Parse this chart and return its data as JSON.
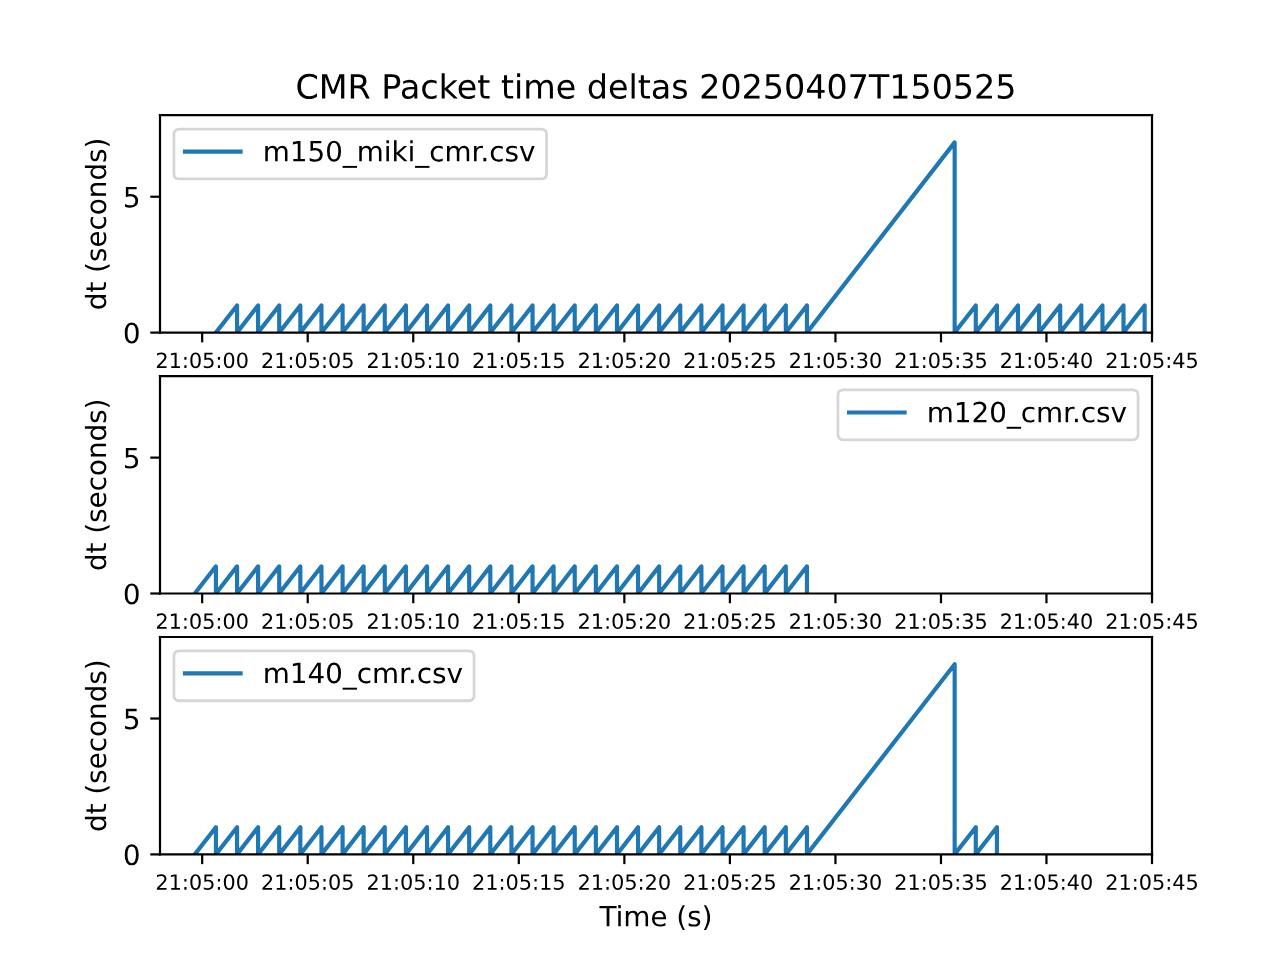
{
  "chart_data": [
    {
      "type": "line",
      "title": "CMR Packet time deltas 20250407T150525",
      "ylabel": "dt (seconds)",
      "legend": "top left",
      "xlim": [
        21.082778,
        21.095833
      ],
      "xticks": [
        {
          "value": 21.083333,
          "label": "21:05:00"
        },
        {
          "value": 21.084722,
          "label": "21:05:05"
        },
        {
          "value": 21.086111,
          "label": "21:05:10"
        },
        {
          "value": 21.0875,
          "label": "21:05:15"
        },
        {
          "value": 21.088889,
          "label": "21:05:20"
        },
        {
          "value": 21.090278,
          "label": "21:05:25"
        },
        {
          "value": 21.091667,
          "label": "21:05:30"
        },
        {
          "value": 21.093056,
          "label": "21:05:35"
        },
        {
          "value": 21.094444,
          "label": "21:05:40"
        },
        {
          "value": 21.095833,
          "label": "21:05:45"
        }
      ],
      "ylim": [
        0,
        8
      ],
      "yticks": [
        0,
        5
      ],
      "series": [
        {
          "name": "m150_miki_cmr.csv",
          "color": "#1f77b4",
          "x": [
            21.083514,
            21.083792,
            21.083792,
            21.084069,
            21.084069,
            21.084347,
            21.084347,
            21.084625,
            21.084625,
            21.084903,
            21.084903,
            21.085181,
            21.085181,
            21.085458,
            21.085458,
            21.085736,
            21.085736,
            21.086014,
            21.086014,
            21.086292,
            21.086292,
            21.086569,
            21.086569,
            21.086847,
            21.086847,
            21.087125,
            21.087125,
            21.087403,
            21.087403,
            21.087681,
            21.087681,
            21.087958,
            21.087958,
            21.088236,
            21.088236,
            21.088514,
            21.088514,
            21.088792,
            21.088792,
            21.089069,
            21.089069,
            21.089347,
            21.089347,
            21.089625,
            21.089625,
            21.089903,
            21.089903,
            21.090181,
            21.090181,
            21.090458,
            21.090458,
            21.090736,
            21.090736,
            21.091014,
            21.091014,
            21.091292,
            21.091292,
            21.093236,
            21.093236,
            21.093514,
            21.093514,
            21.093792,
            21.093792,
            21.094069,
            21.094069,
            21.094347,
            21.094347,
            21.094625,
            21.094625,
            21.094903,
            21.094903,
            21.095181,
            21.095181,
            21.095458,
            21.095458,
            21.095736,
            21.095736
          ],
          "values": [
            0,
            1,
            0,
            1,
            0,
            1,
            0,
            1,
            0,
            1,
            0,
            1,
            0,
            1,
            0,
            1,
            0,
            1,
            0,
            1,
            0,
            1,
            0,
            1,
            0,
            1,
            0,
            1,
            0,
            1,
            0,
            1,
            0,
            1,
            0,
            1,
            0,
            1,
            0,
            1,
            0,
            1,
            0,
            1,
            0,
            1,
            0,
            1,
            0,
            1,
            0,
            1,
            0,
            1,
            0,
            1,
            0,
            7,
            0,
            1,
            0,
            1,
            0,
            1,
            0,
            1,
            0,
            1,
            0,
            1,
            0,
            1,
            0,
            1,
            0,
            1,
            0
          ]
        }
      ]
    },
    {
      "type": "line",
      "ylabel": "dt (seconds)",
      "legend": "top right",
      "xlim": [
        21.082778,
        21.095833
      ],
      "xticks": [
        {
          "value": 21.083333,
          "label": "21:05:00"
        },
        {
          "value": 21.084722,
          "label": "21:05:05"
        },
        {
          "value": 21.086111,
          "label": "21:05:10"
        },
        {
          "value": 21.0875,
          "label": "21:05:15"
        },
        {
          "value": 21.088889,
          "label": "21:05:20"
        },
        {
          "value": 21.090278,
          "label": "21:05:25"
        },
        {
          "value": 21.091667,
          "label": "21:05:30"
        },
        {
          "value": 21.093056,
          "label": "21:05:35"
        },
        {
          "value": 21.094444,
          "label": "21:05:40"
        },
        {
          "value": 21.095833,
          "label": "21:05:45"
        }
      ],
      "ylim": [
        0,
        8
      ],
      "yticks": [
        0,
        5
      ],
      "series": [
        {
          "name": "m120_cmr.csv",
          "color": "#1f77b4",
          "x": [
            21.083236,
            21.083514,
            21.083514,
            21.083792,
            21.083792,
            21.084069,
            21.084069,
            21.084347,
            21.084347,
            21.084625,
            21.084625,
            21.084903,
            21.084903,
            21.085181,
            21.085181,
            21.085458,
            21.085458,
            21.085736,
            21.085736,
            21.086014,
            21.086014,
            21.086292,
            21.086292,
            21.086569,
            21.086569,
            21.086847,
            21.086847,
            21.087125,
            21.087125,
            21.087403,
            21.087403,
            21.087681,
            21.087681,
            21.087958,
            21.087958,
            21.088236,
            21.088236,
            21.088514,
            21.088514,
            21.088792,
            21.088792,
            21.089069,
            21.089069,
            21.089347,
            21.089347,
            21.089625,
            21.089625,
            21.089903,
            21.089903,
            21.090181,
            21.090181,
            21.090458,
            21.090458,
            21.090736,
            21.090736,
            21.091014,
            21.091014,
            21.091292,
            21.091292
          ],
          "values": [
            0,
            1,
            0,
            1,
            0,
            1,
            0,
            1,
            0,
            1,
            0,
            1,
            0,
            1,
            0,
            1,
            0,
            1,
            0,
            1,
            0,
            1,
            0,
            1,
            0,
            1,
            0,
            1,
            0,
            1,
            0,
            1,
            0,
            1,
            0,
            1,
            0,
            1,
            0,
            1,
            0,
            1,
            0,
            1,
            0,
            1,
            0,
            1,
            0,
            1,
            0,
            1,
            0,
            1,
            0,
            1,
            0,
            1,
            0
          ]
        }
      ]
    },
    {
      "type": "line",
      "xlabel": "Time (s)",
      "ylabel": "dt (seconds)",
      "legend": "top left",
      "xlim": [
        21.082778,
        21.095833
      ],
      "xticks": [
        {
          "value": 21.083333,
          "label": "21:05:00"
        },
        {
          "value": 21.084722,
          "label": "21:05:05"
        },
        {
          "value": 21.086111,
          "label": "21:05:10"
        },
        {
          "value": 21.0875,
          "label": "21:05:15"
        },
        {
          "value": 21.088889,
          "label": "21:05:20"
        },
        {
          "value": 21.090278,
          "label": "21:05:25"
        },
        {
          "value": 21.091667,
          "label": "21:05:30"
        },
        {
          "value": 21.093056,
          "label": "21:05:35"
        },
        {
          "value": 21.094444,
          "label": "21:05:40"
        },
        {
          "value": 21.095833,
          "label": "21:05:45"
        }
      ],
      "ylim": [
        0,
        8
      ],
      "yticks": [
        0,
        5
      ],
      "series": [
        {
          "name": "m140_cmr.csv",
          "color": "#1f77b4",
          "x": [
            21.083236,
            21.083514,
            21.083514,
            21.083792,
            21.083792,
            21.084069,
            21.084069,
            21.084347,
            21.084347,
            21.084625,
            21.084625,
            21.084903,
            21.084903,
            21.085181,
            21.085181,
            21.085458,
            21.085458,
            21.085736,
            21.085736,
            21.086014,
            21.086014,
            21.086292,
            21.086292,
            21.086569,
            21.086569,
            21.086847,
            21.086847,
            21.087125,
            21.087125,
            21.087403,
            21.087403,
            21.087681,
            21.087681,
            21.087958,
            21.087958,
            21.088236,
            21.088236,
            21.088514,
            21.088514,
            21.088792,
            21.088792,
            21.089069,
            21.089069,
            21.089347,
            21.089347,
            21.089625,
            21.089625,
            21.089903,
            21.089903,
            21.090181,
            21.090181,
            21.090458,
            21.090458,
            21.090736,
            21.090736,
            21.091014,
            21.091014,
            21.091292,
            21.091292,
            21.093236,
            21.093236,
            21.093514,
            21.093514,
            21.093792,
            21.093792
          ],
          "values": [
            0,
            1,
            0,
            1,
            0,
            1,
            0,
            1,
            0,
            1,
            0,
            1,
            0,
            1,
            0,
            1,
            0,
            1,
            0,
            1,
            0,
            1,
            0,
            1,
            0,
            1,
            0,
            1,
            0,
            1,
            0,
            1,
            0,
            1,
            0,
            1,
            0,
            1,
            0,
            1,
            0,
            1,
            0,
            1,
            0,
            1,
            0,
            1,
            0,
            1,
            0,
            1,
            0,
            1,
            0,
            1,
            0,
            1,
            0,
            7,
            0,
            1,
            0,
            1,
            0
          ]
        }
      ]
    }
  ]
}
